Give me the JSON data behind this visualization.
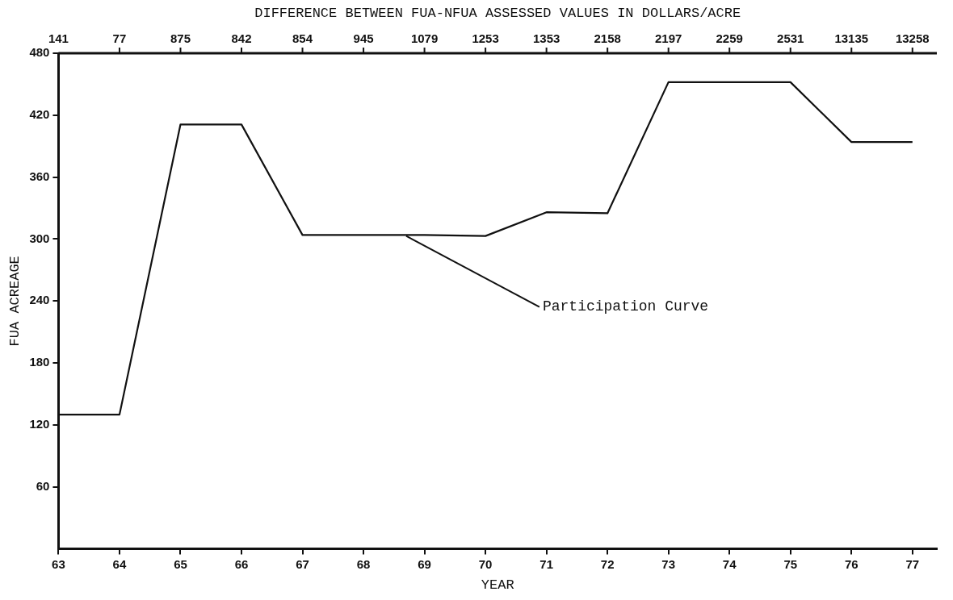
{
  "chart_data": {
    "type": "line",
    "x2label": "DIFFERENCE BETWEEN FUA-NFUA ASSESSED VALUES IN DOLLARS/ACRE",
    "xlabel": "YEAR",
    "ylabel": "FUA ACREAGE",
    "x": [
      63,
      64,
      65,
      66,
      67,
      68,
      69,
      70,
      71,
      72,
      73,
      74,
      75,
      76,
      77
    ],
    "series": [
      {
        "color": "#111111",
        "values": [
          130,
          130,
          411,
          411,
          304,
          304,
          304,
          303,
          326,
          325,
          452,
          452,
          452,
          394,
          394
        ]
      }
    ],
    "xlim": [
      63,
      77.4
    ],
    "xticks": [
      63,
      64,
      65,
      66,
      67,
      68,
      69,
      70,
      71,
      72,
      73,
      74,
      75,
      76,
      77
    ],
    "ylim": [
      0,
      480
    ],
    "yticks": [
      60,
      120,
      180,
      240,
      300,
      360,
      420,
      480
    ],
    "annotations": [
      {
        "text": "Participation Curve",
        "x": 68.7,
        "y": 303
      },
      "141",
      "77",
      "875",
      "842",
      "854",
      "945",
      "1079",
      "1253",
      "1353",
      "2158",
      "2197",
      "2259",
      "2531",
      "13135",
      "13258"
    ],
    "grid": false,
    "legend": false,
    "marker": "none",
    "line_style": "solid"
  }
}
